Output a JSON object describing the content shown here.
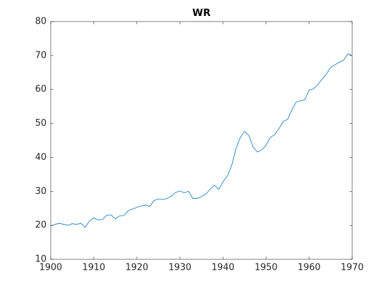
{
  "chart_data": {
    "type": "line",
    "title": "WR",
    "x": [
      1900,
      1901,
      1902,
      1903,
      1904,
      1905,
      1906,
      1907,
      1908,
      1909,
      1910,
      1911,
      1912,
      1913,
      1914,
      1915,
      1916,
      1917,
      1918,
      1919,
      1920,
      1921,
      1922,
      1923,
      1924,
      1925,
      1926,
      1927,
      1928,
      1929,
      1930,
      1931,
      1932,
      1933,
      1934,
      1935,
      1936,
      1937,
      1938,
      1939,
      1940,
      1941,
      1942,
      1943,
      1944,
      1945,
      1946,
      1947,
      1948,
      1949,
      1950,
      1951,
      1952,
      1953,
      1954,
      1955,
      1956,
      1957,
      1958,
      1959,
      1960,
      1961,
      1962,
      1963,
      1964,
      1965,
      1966,
      1967,
      1968,
      1969,
      1970
    ],
    "series": [
      {
        "color": "#0072bd",
        "values": [
          19.8,
          20.3,
          20.6,
          20.3,
          20.0,
          20.5,
          20.3,
          20.6,
          19.4,
          21.3,
          22.2,
          21.6,
          21.7,
          23.0,
          23.1,
          21.9,
          22.8,
          22.9,
          24.3,
          24.8,
          25.3,
          25.7,
          26.0,
          25.6,
          27.3,
          27.8,
          27.6,
          27.9,
          28.6,
          29.7,
          30.1,
          29.6,
          30.0,
          27.9,
          27.9,
          28.5,
          29.2,
          30.6,
          31.8,
          30.6,
          32.8,
          34.5,
          37.5,
          42.5,
          45.8,
          47.7,
          46.5,
          43.0,
          41.6,
          42.2,
          43.6,
          45.9,
          46.7,
          48.5,
          50.6,
          51.2,
          54.0,
          56.3,
          56.7,
          57.0,
          59.8,
          60.2,
          61.4,
          63.0,
          64.5,
          66.5,
          67.3,
          68.0,
          68.6,
          70.5,
          70.0
        ]
      }
    ],
    "xlim": [
      1900,
      1970
    ],
    "xticks": [
      1900,
      1910,
      1920,
      1930,
      1940,
      1950,
      1960,
      1970
    ],
    "ylim": [
      10,
      80
    ],
    "yticks": [
      10,
      20,
      30,
      40,
      50,
      60,
      70,
      80
    ]
  }
}
